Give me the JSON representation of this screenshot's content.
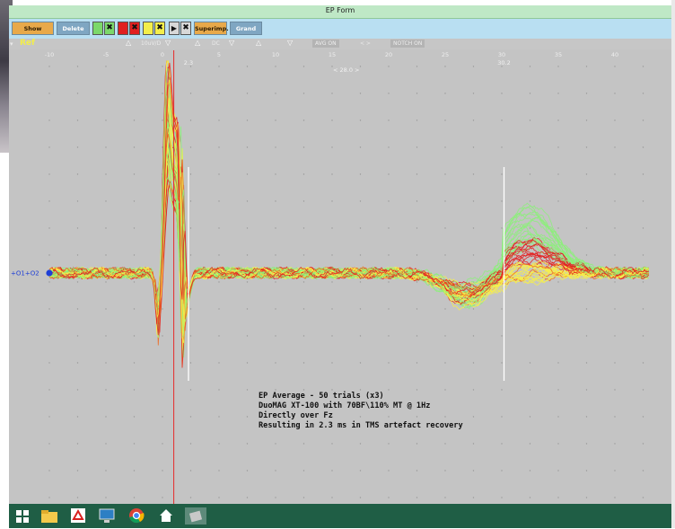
{
  "window": {
    "title": "EP Form"
  },
  "toolbar": {
    "show_cursors": "Show Cursors",
    "delete_all": "Delete all",
    "superimp": "Superimp.",
    "grand_avg": "Grand AVG",
    "swatch_colors": [
      "#7bd86a",
      "#e02020",
      "#f3ee4a"
    ],
    "nav_glyphs": {
      "play": "▶",
      "close": "✖"
    }
  },
  "controls": {
    "ref_label": "Ref",
    "scale_label": "10uV/D",
    "coupling_label": "DC",
    "avg": "AVG ON",
    "notch": "NOTCH ON",
    "arrows": "< >"
  },
  "chart_data": {
    "type": "line",
    "title": "",
    "xlabel": "",
    "ylabel": "",
    "xlim": [
      -10,
      43
    ],
    "x_ticks": [
      -10,
      -5,
      0,
      5,
      10,
      15,
      20,
      25,
      30,
      35,
      40
    ],
    "grid": true,
    "channel_label": "+O1+O2",
    "cursors": [
      {
        "x": 2.3,
        "label": "2.3"
      },
      {
        "x": 30.2,
        "label": "30.2"
      }
    ],
    "cursor_interval_label": "< 28.0 >",
    "stimulus_marker_x": 1.0,
    "n_traces": 50,
    "trace_colors": [
      "#8cf07a",
      "#e42020",
      "#f7f04a",
      "#f06a20"
    ]
  },
  "annotation": {
    "lines": [
      "EP Average - 50 trials (x3)",
      "DuoMAG XT-100 with 70BF\\110% MT @ 1Hz",
      "Directly over Fz",
      "Resulting in 2.3 ms in TMS artefact recovery"
    ]
  },
  "taskbar": {
    "icons": [
      "windows-start-icon",
      "file-explorer-icon",
      "adobe-reader-icon",
      "remote-desktop-icon",
      "chrome-icon",
      "home-icon",
      "app-icon"
    ]
  }
}
